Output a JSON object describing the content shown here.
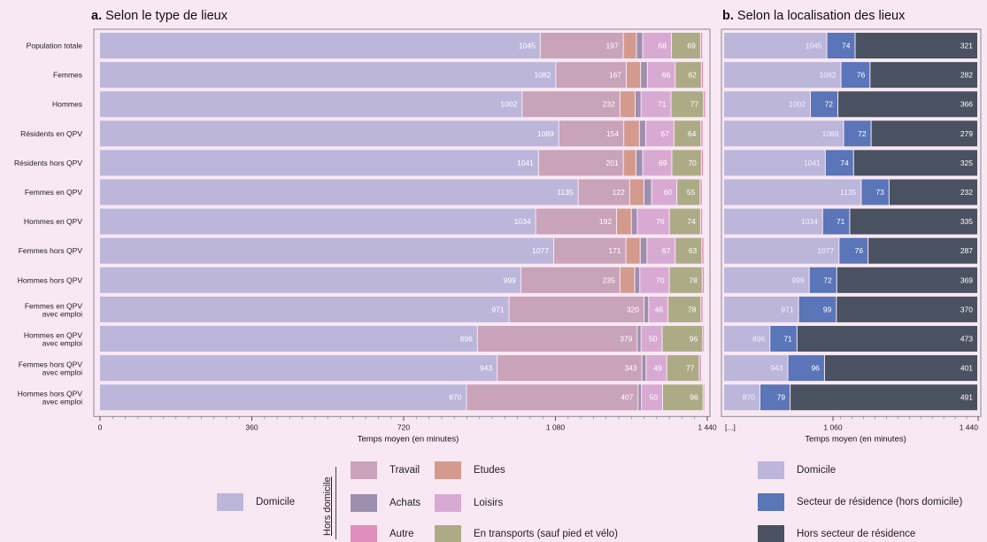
{
  "colors": {
    "domicile": "#bcb6db",
    "travail": "#c9a3b9",
    "etudes": "#d49a8e",
    "achats": "#9d8fad",
    "loisirs": "#d8aad3",
    "transports": "#adab86",
    "autre": "#e08fbd",
    "secteur": "#5a75b8",
    "hors_secteur": "#4a5160"
  },
  "panel_a": {
    "title_letter": "a.",
    "title_text": "Selon le type de lieux",
    "xlabel": "Temps moyen (en minutes)",
    "ticks": [
      {
        "value": 0,
        "label": "0"
      },
      {
        "value": 360,
        "label": "360"
      },
      {
        "value": 720,
        "label": "720"
      },
      {
        "value": 1080,
        "label": "1 080"
      },
      {
        "value": 1440,
        "label": "1 440"
      }
    ]
  },
  "panel_b": {
    "title_letter": "b.",
    "title_text": "Selon la localisation des lieux",
    "xlabel": "Temps moyen (en minutes)",
    "break_label": "[...]",
    "ticks": [
      {
        "value": 1060,
        "label": "1 060"
      },
      {
        "value": 1440,
        "label": "1 440"
      }
    ]
  },
  "legend": {
    "group_label": "Hors domicile",
    "domicile": "Domicile",
    "travail": "Travail",
    "etudes": "Etudes",
    "achats": "Achats",
    "loisirs": "Loisirs",
    "autre": "Autre",
    "transports": "En transports (sauf pied et vélo)",
    "b_domicile": "Domicile",
    "b_secteur": "Secteur de résidence (hors domicile)",
    "b_hors_secteur": "Hors secteur de résidence"
  },
  "chart_data": [
    {
      "type": "bar",
      "orientation": "horizontal",
      "stacked": true,
      "title": "a. Selon le type de lieux",
      "xlabel": "Temps moyen (en minutes)",
      "xlim": [
        0,
        1440
      ],
      "categories": [
        [
          "Population totale"
        ],
        [
          "Femmes"
        ],
        [
          "Hommes"
        ],
        [
          "Résidents en QPV"
        ],
        [
          "Résidents hors QPV"
        ],
        [
          "Femmes en QPV"
        ],
        [
          "Hommes en QPV"
        ],
        [
          "Femmes hors QPV"
        ],
        [
          "Hommes hors QPV"
        ],
        [
          "Femmes en QPV",
          "avec emploi"
        ],
        [
          "Hommes en QPV",
          "avec emploi"
        ],
        [
          "Femmes hors QPV",
          "avec emploi"
        ],
        [
          "Hommes hors QPV",
          "avec emploi"
        ]
      ],
      "series": [
        {
          "name": "Domicile",
          "values": [
            1045,
            1082,
            1002,
            1089,
            1041,
            1135,
            1034,
            1077,
            999,
            971,
            896,
            943,
            870
          ]
        },
        {
          "name": "Travail",
          "values": [
            197,
            167,
            232,
            154,
            201,
            122,
            192,
            171,
            235,
            320,
            379,
            343,
            407
          ]
        },
        {
          "name": "Etudes",
          "values": [
            31,
            34,
            36,
            37,
            30,
            34,
            35,
            34,
            35,
            0,
            0,
            0,
            0
          ]
        },
        {
          "name": "Achats",
          "values": [
            15,
            16,
            14,
            15,
            16,
            18,
            14,
            16,
            12,
            11,
            9,
            10,
            8
          ]
        },
        {
          "name": "Loisirs",
          "values": [
            68,
            66,
            71,
            67,
            69,
            60,
            76,
            67,
            70,
            46,
            50,
            49,
            50
          ]
        },
        {
          "name": "En transports (sauf pied et vélo)",
          "values": [
            69,
            62,
            77,
            64,
            70,
            55,
            74,
            63,
            78,
            78,
            96,
            77,
            96
          ]
        },
        {
          "name": "Autre",
          "values": [
            5,
            5,
            5,
            5,
            5,
            5,
            5,
            5,
            5,
            5,
            4,
            5,
            4
          ]
        }
      ],
      "data_labels": {
        "Domicile": true,
        "Travail": true,
        "Loisirs": true,
        "En transports (sauf pied et vélo)": true
      }
    },
    {
      "type": "bar",
      "orientation": "horizontal",
      "stacked": true,
      "title": "b. Selon la localisation des lieux",
      "xlabel": "Temps moyen (en minutes)",
      "axis_break": true,
      "xlim": [
        800,
        1440
      ],
      "series": [
        {
          "name": "Domicile",
          "values": [
            1045,
            1082,
            1002,
            1089,
            1041,
            1135,
            1034,
            1077,
            999,
            971,
            896,
            943,
            870
          ]
        },
        {
          "name": "Secteur de résidence (hors domicile)",
          "values": [
            74,
            76,
            72,
            72,
            74,
            73,
            71,
            76,
            72,
            99,
            71,
            96,
            79
          ]
        },
        {
          "name": "Hors secteur de résidence",
          "values": [
            321,
            282,
            366,
            279,
            325,
            232,
            335,
            287,
            369,
            370,
            473,
            401,
            491
          ]
        }
      ]
    }
  ]
}
